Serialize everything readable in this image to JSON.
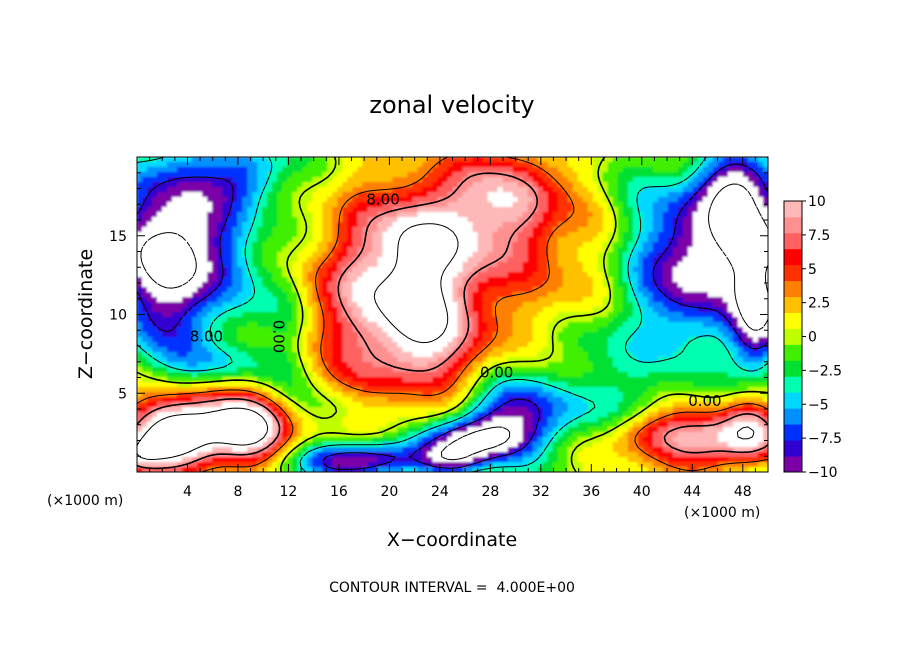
{
  "chart_data": {
    "type": "heatmap",
    "title": "zonal velocity",
    "xlabel": "X−coordinate",
    "ylabel": "Z−coordinate",
    "x_unit": "(×1000 m)",
    "y_unit": "(×1000 m)",
    "xlim": [
      0,
      50
    ],
    "ylim": [
      0,
      20
    ],
    "x_ticks": [
      4,
      8,
      12,
      16,
      20,
      24,
      28,
      32,
      36,
      40,
      44,
      48
    ],
    "x_tick_labels": [
      "4",
      "8",
      "12",
      "16",
      "20",
      "24",
      "28",
      "32",
      "36",
      "40",
      "44",
      "48"
    ],
    "y_ticks": [
      5,
      10,
      15
    ],
    "y_tick_labels": [
      "5",
      "10",
      "15"
    ],
    "colorbar": {
      "min": -10,
      "max": 10,
      "ticks": [
        10,
        7.5,
        5,
        2.5,
        0,
        -2.5,
        -5,
        -7.5,
        -10
      ],
      "tick_labels": [
        "10",
        "7.5",
        "5",
        "2.5",
        "0",
        "−2.5",
        "−5",
        "−7.5",
        "−10"
      ],
      "colors": [
        "#7b00a8",
        "#3000d0",
        "#0030ff",
        "#0090ff",
        "#00d8ff",
        "#00ffb0",
        "#00e030",
        "#40f000",
        "#c0ff00",
        "#ffff00",
        "#ffc000",
        "#ff8000",
        "#ff3000",
        "#ff0000",
        "#ff6060",
        "#ff9090",
        "#ffb8b8"
      ]
    },
    "contour_labels": [
      {
        "text": "8.00",
        "x": 19.5,
        "z": 17.0
      },
      {
        "text": "8.00",
        "x": 5.5,
        "z": 8.3
      },
      {
        "text": "0.00",
        "x": 10.8,
        "z": 8.6
      },
      {
        "text": "0.00",
        "x": 28.5,
        "z": 6.0
      },
      {
        "text": "0.00",
        "x": 45.0,
        "z": 4.2
      }
    ],
    "contour_interval_text": "CONTOUR INTERVAL =  4.000E+00"
  }
}
